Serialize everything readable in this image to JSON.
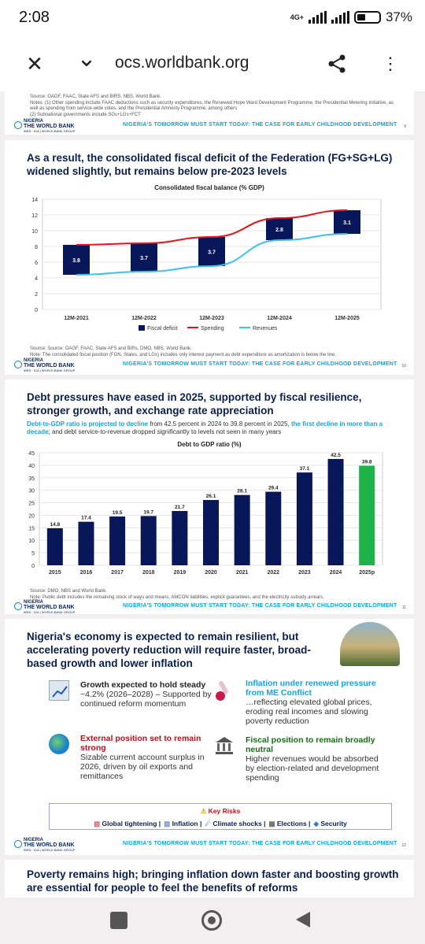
{
  "status": {
    "time": "2:08",
    "network": "4G+",
    "battery": "37%"
  },
  "browser": {
    "url": "ocs.worldbank.org",
    "close": "✕",
    "down": "⌄"
  },
  "slide9": {
    "source": "Source: OAGF, FAAC, State AFS and BIRS, NBS, World Bank.",
    "notes1": "Notes: (1) Other spending include FAAC deductions such as security expenditures, the Renewed Hope Ward Development Programme, the Presidential Metering Initiative, as",
    "notes2": "well as spending from service-wide votes, and the Presidential Amnesty Programme, among others",
    "notes3": "(2) Subnational governments include SGs+LGs+FCT",
    "footer": "NIGERIA'S TOMORROW MUST START TODAY: THE CASE FOR EARLY CHILDHOOD DEVELOPMENT",
    "page": "9"
  },
  "logo": {
    "top": "NIGERIA",
    "name": "THE WORLD BANK",
    "sub": "IBRD · IDA | WORLD BANK GROUP"
  },
  "slide10": {
    "title": "As a result, the consolidated fiscal deficit of the Federation (FG+SG+LG) widened slightly, but remains below pre-2023 levels",
    "source": "Source: Source: OAGF, FAAC, State AFS and BIRs, DMO, NBS, World Bank.",
    "note": "Note: The consolidated fiscal position (FGN, States, and LGs) includes only interest payment as debt expenditure as amortization is below the line.",
    "footer": "NIGERIA'S TOMORROW MUST START TODAY: THE CASE FOR EARLY CHILDHOOD DEVELOPMENT",
    "page": "10"
  },
  "slide11": {
    "title": "Debt pressures have eased in 2025, supported by fiscal resilience, stronger growth, and exchange rate appreciation",
    "sub_a": "Debt-to-GDP ratio is projected to decline",
    "sub_b": " from 42.5 percent in 2024 to 39.8 percent in 2025, ",
    "sub_c": "the first decline in more than a decade",
    "sub_d": "; and debt service-to-revenue dropped significantly to levels not seen in many years",
    "source": "Source: DMO, NBS and World Bank.",
    "note": "Note: Public debt includes the remaining stock of ways and means, AMCON liabilities, explicit guarantees, and the electricity subsidy arrears.",
    "footer": "NIGERIA'S TOMORROW MUST START TODAY: THE CASE FOR EARLY CHILDHOOD DEVELOPMENT",
    "page": "11"
  },
  "slide12": {
    "title": "Nigeria's economy is expected to remain resilient, but accelerating poverty reduction will require faster, broad-based growth and lower inflation",
    "items": [
      {
        "head": "Growth expected to hold steady",
        "body": "~4.2% (2026–2028) – Supported by continued reform momentum",
        "color": "#0b1f4d"
      },
      {
        "head": "Inflation under renewed pressure from ME Conflict",
        "body": "…reflecting elevated global prices, eroding real incomes and slowing poverty reduction",
        "color": "#1aa3d9"
      },
      {
        "head": "External position set to remain strong",
        "body": "Sizable current account surplus in 2026, driven by oil exports and remittances",
        "color": "#c0101c"
      },
      {
        "head": "Fiscal position to remain broadly neutral",
        "body": "Higher revenues would be absorbed by election-related and development spending",
        "color": "#1a6b1a"
      }
    ],
    "risks_title": "Key Risks",
    "risks": [
      "Global tightening",
      "Inflation",
      "Climate shocks",
      "Elections",
      "Security"
    ],
    "footer": "NIGERIA'S TOMORROW MUST START TODAY: THE CASE FOR EARLY CHILDHOOD DEVELOPMENT",
    "page": "12"
  },
  "slide13": {
    "title": "Poverty remains high; bringing inflation down faster and boosting growth are essential for people to feel the benefits of reforms"
  },
  "chart_data": [
    {
      "type": "bar",
      "title": "Consolidated fiscal balance (% GDP)",
      "categories": [
        "12M-2021",
        "12M-2022",
        "12M-2023",
        "12M-2024",
        "12M-2025"
      ],
      "series": [
        {
          "name": "Fiscal deficit",
          "values": [
            3.8,
            3.7,
            3.7,
            2.8,
            3.1
          ]
        },
        {
          "name": "Spending",
          "values": [
            8.2,
            8.4,
            9.2,
            11.6,
            12.6
          ]
        },
        {
          "name": "Revenues",
          "values": [
            4.4,
            4.8,
            5.5,
            8.8,
            9.6
          ]
        }
      ],
      "ylim": [
        0,
        14
      ],
      "yticks": [
        0,
        2,
        4,
        6,
        8,
        10,
        12,
        14
      ],
      "colors": {
        "deficit": "#07175a",
        "spending": "#e3141c",
        "revenues": "#3ec0ee"
      }
    },
    {
      "type": "bar",
      "title": "Debt to GDP ratio (%)",
      "categories": [
        "2015",
        "2016",
        "2017",
        "2018",
        "2019",
        "2020",
        "2021",
        "2022",
        "2023",
        "2024",
        "2025p"
      ],
      "values": [
        14.8,
        17.4,
        19.5,
        19.7,
        21.7,
        26.1,
        28.1,
        29.4,
        37.1,
        42.5,
        39.8
      ],
      "ylim": [
        0,
        45
      ],
      "yticks": [
        0,
        5,
        10,
        15,
        20,
        25,
        30,
        35,
        40,
        45
      ],
      "colors": {
        "bar": "#07175a",
        "proj": "#1db34a"
      }
    }
  ]
}
